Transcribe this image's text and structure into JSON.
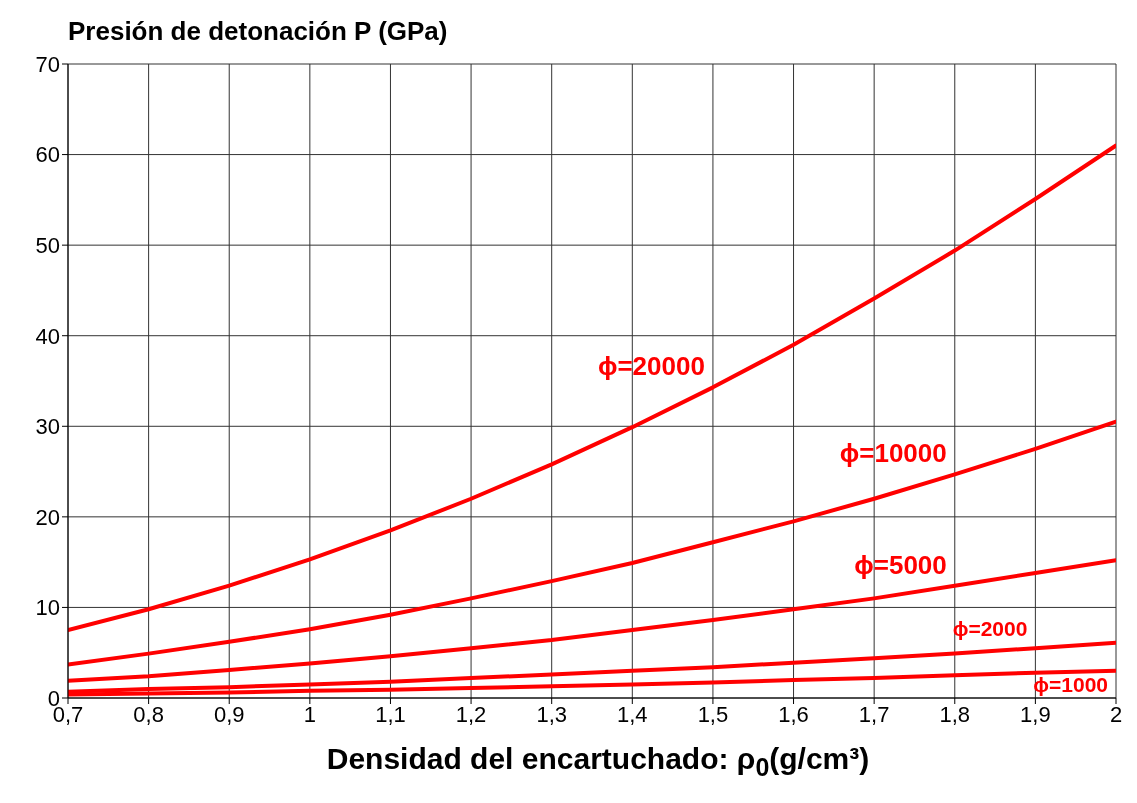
{
  "chart_data": {
    "type": "line",
    "title": "Presión de detonación P (GPa)",
    "xlabel": "Densidad del encartuchado:  ρ$_{0}$(g/cm³)",
    "x": [
      0.7,
      0.8,
      0.9,
      1.0,
      1.1,
      1.2,
      1.3,
      1.4,
      1.5,
      1.6,
      1.7,
      1.8,
      1.9,
      2.0
    ],
    "series": [
      {
        "name": "ϕ=20000",
        "color": "#ff0000",
        "values": [
          7.5,
          9.8,
          12.4,
          15.3,
          18.5,
          22,
          25.8,
          29.9,
          34.3,
          39,
          44.1,
          49.4,
          55.1,
          61
        ]
      },
      {
        "name": "ϕ=10000",
        "color": "#ff0000",
        "values": [
          3.7,
          4.9,
          6.2,
          7.6,
          9.2,
          11,
          12.9,
          14.9,
          17.2,
          19.5,
          22,
          24.7,
          27.5,
          30.5
        ]
      },
      {
        "name": "ϕ=5000",
        "color": "#ff0000",
        "values": [
          1.9,
          2.4,
          3.1,
          3.8,
          4.6,
          5.5,
          6.4,
          7.5,
          8.6,
          9.8,
          11,
          12.4,
          13.8,
          15.2
        ]
      },
      {
        "name": "ϕ=2000",
        "color": "#ff0000",
        "values": [
          0.7,
          1,
          1.2,
          1.5,
          1.8,
          2.2,
          2.6,
          3,
          3.4,
          3.9,
          4.4,
          4.9,
          5.5,
          6.1
        ]
      },
      {
        "name": "ϕ=1000",
        "color": "#ff0000",
        "values": [
          0.4,
          0.5,
          0.6,
          0.8,
          0.9,
          1.1,
          1.3,
          1.5,
          1.7,
          2,
          2.2,
          2.5,
          2.8,
          3
        ]
      }
    ],
    "xlim": [
      0.7,
      2
    ],
    "xticks": [
      {
        "value": 0.7,
        "label": "0,7"
      },
      {
        "value": 0.8,
        "label": "0,8"
      },
      {
        "value": 0.9,
        "label": "0,9"
      },
      1,
      {
        "value": 1.1,
        "label": "1,1"
      },
      {
        "value": 1.2,
        "label": "1,2"
      },
      {
        "value": 1.3,
        "label": "1,3"
      },
      {
        "value": 1.4,
        "label": "1,4"
      },
      {
        "value": 1.5,
        "label": "1,5"
      },
      {
        "value": 1.6,
        "label": "1,6"
      },
      {
        "value": 1.7,
        "label": "1,7"
      },
      {
        "value": 1.8,
        "label": "1,8"
      },
      {
        "value": 1.9,
        "label": "1,9"
      },
      2
    ],
    "ylim": [
      0,
      70
    ],
    "yticks": [
      0,
      10,
      20,
      30,
      40,
      50,
      60,
      70
    ],
    "grid": true
  }
}
